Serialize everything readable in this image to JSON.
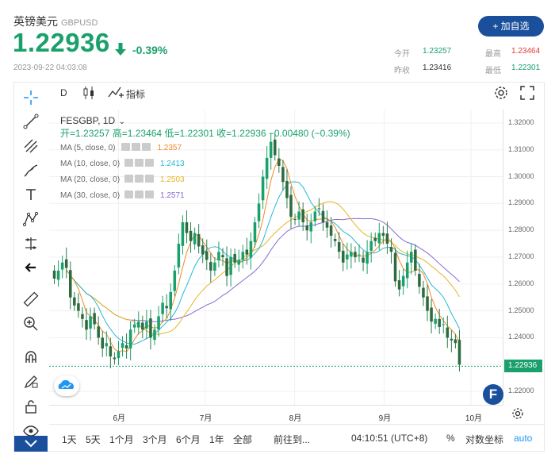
{
  "header": {
    "name": "英镑美元",
    "code": "GBPUSD",
    "price": "1.22936",
    "change_pct": "-0.39%",
    "timestamp": "2023-09-22 04:03:08",
    "add_button": "+ 加自选",
    "quote": {
      "open_label": "今开",
      "open": "1.23257",
      "high_label": "最高",
      "high": "1.23464",
      "prev_label": "昨收",
      "prev": "1.23416",
      "low_label": "最低",
      "low": "1.22301"
    },
    "colors": {
      "up": "#1aa06c",
      "down": "#e23a3a",
      "brand": "#1a4f9c"
    }
  },
  "toolbar": {
    "interval": "D",
    "indicators": "指标",
    "left_tools": [
      "crosshair-icon",
      "trendline-icon",
      "fib-icon",
      "brush-icon",
      "text-icon",
      "pattern-icon",
      "measure-icon",
      "back-arrow-icon",
      "ruler-icon",
      "zoom-in-icon",
      "magnet-icon",
      "lock-draw-icon",
      "lock-icon",
      "eye-icon"
    ]
  },
  "legend": {
    "symbol": "FESGBP, 1D",
    "ohlc": "开=1.23257  高=1.23464  低=1.22301  收=1.22936  −0.00480 (−0.39%)",
    "ma": [
      {
        "label": "MA (5, close, 0)",
        "value": "1.2357",
        "color": "#f08a24"
      },
      {
        "label": "MA (10, close, 0)",
        "value": "1.2413",
        "color": "#27b9d4"
      },
      {
        "label": "MA (20, close, 0)",
        "value": "1.2503",
        "color": "#e6b422"
      },
      {
        "label": "MA (30, close, 0)",
        "value": "1.2571",
        "color": "#8a6bd1"
      }
    ]
  },
  "axis": {
    "y_ticks": [
      "1.32000",
      "1.31000",
      "1.30000",
      "1.29000",
      "1.28000",
      "1.27000",
      "1.26000",
      "1.25000",
      "1.24000",
      "1.23000",
      "1.22000"
    ],
    "x_ticks": [
      "6月",
      "7月",
      "8月",
      "9月",
      "10月"
    ],
    "current_price_tag": "1.22936"
  },
  "bottom": {
    "ranges": [
      "1天",
      "5天",
      "1个月",
      "3个月",
      "6个月",
      "1年",
      "全部"
    ],
    "goto": "前往到...",
    "clock": "04:10:51 (UTC+8)",
    "percent": "%",
    "log": "对数坐标",
    "auto": "auto"
  },
  "chart_data": {
    "type": "candlestick",
    "title": "FESGBP, 1D",
    "ylim": [
      1.215,
      1.325
    ],
    "x_range": [
      "2023-05-08",
      "2023-10-12"
    ],
    "closes": [
      1.262,
      1.265,
      1.268,
      1.266,
      1.255,
      1.252,
      1.25,
      1.247,
      1.243,
      1.248,
      1.245,
      1.24,
      1.236,
      1.238,
      1.233,
      1.232,
      1.235,
      1.238,
      1.236,
      1.243,
      1.245,
      1.246,
      1.243,
      1.246,
      1.24,
      1.243,
      1.248,
      1.253,
      1.251,
      1.257,
      1.265,
      1.275,
      1.283,
      1.279,
      1.276,
      1.279,
      1.274,
      1.271,
      1.269,
      1.265,
      1.268,
      1.272,
      1.27,
      1.263,
      1.27,
      1.268,
      1.269,
      1.272,
      1.271,
      1.276,
      1.283,
      1.29,
      1.3,
      1.307,
      1.313,
      1.308,
      1.304,
      1.298,
      1.292,
      1.285,
      1.284,
      1.287,
      1.283,
      1.28,
      1.283,
      1.287,
      1.288,
      1.283,
      1.281,
      1.278,
      1.276,
      1.272,
      1.268,
      1.271,
      1.272,
      1.27,
      1.271,
      1.268,
      1.272,
      1.276,
      1.276,
      1.279,
      1.278,
      1.275,
      1.272,
      1.261,
      1.258,
      1.263,
      1.268,
      1.272,
      1.265,
      1.259,
      1.255,
      1.25,
      1.246,
      1.247,
      1.244,
      1.245,
      1.24,
      1.239,
      1.238,
      1.23
    ],
    "ma": [
      {
        "name": "MA5",
        "last": 1.2357
      },
      {
        "name": "MA10",
        "last": 1.2413
      },
      {
        "name": "MA20",
        "last": 1.2503
      },
      {
        "name": "MA30",
        "last": 1.2571
      }
    ],
    "last": 1.22936
  }
}
